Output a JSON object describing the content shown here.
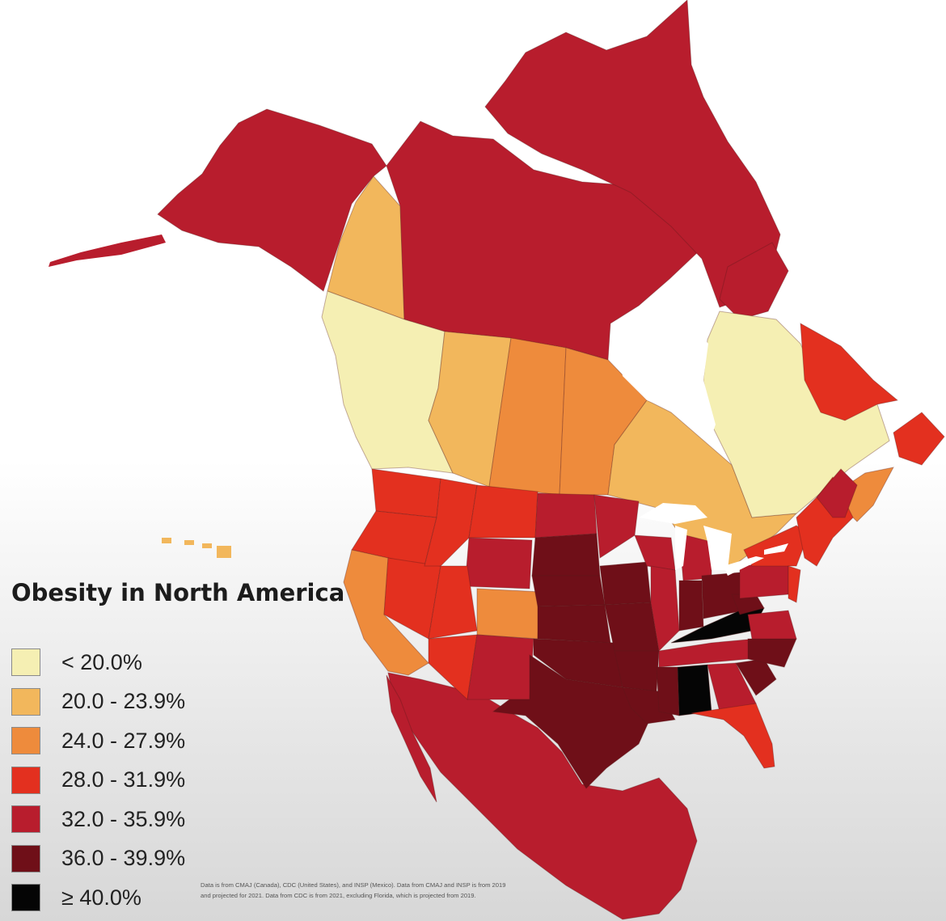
{
  "title": "Obesity in North America",
  "legend": [
    {
      "label": "< 20.0%",
      "color": "#f5efb3"
    },
    {
      "label": "20.0 - 23.9%",
      "color": "#f2b75c"
    },
    {
      "label": "24.0 - 27.9%",
      "color": "#ee8b3c"
    },
    {
      "label": "28.0 - 31.9%",
      "color": "#e3301f"
    },
    {
      "label": "32.0 - 35.9%",
      "color": "#b81d2d"
    },
    {
      "label": "36.0 - 39.9%",
      "color": "#6f0f18"
    },
    {
      "label": "≥ 40.0%",
      "color": "#050505"
    }
  ],
  "source_note": "Data is from CMAJ (Canada), CDC (United States), and INSP (Mexico). Data from CMAJ and INSP is from 2019 and projected for 2021. Data from CDC is from 2021, excluding Florida, which is projected from 2019."
}
